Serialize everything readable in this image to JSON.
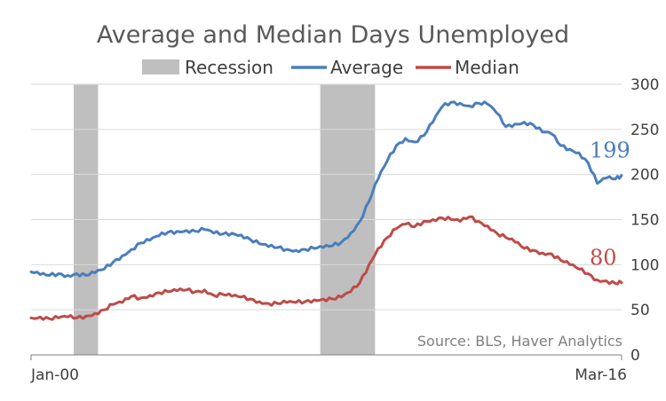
{
  "chart_data": {
    "type": "line",
    "title": "Average and Median Days Unemployed",
    "source": "Source: BLS, Haver Analytics",
    "x_range": [
      "2000-01",
      "2016-03"
    ],
    "x_tick_labels": [
      "Jan-00",
      "Mar-16"
    ],
    "y_axis_side": "right",
    "ylim": [
      0,
      300
    ],
    "y_ticks": [
      "0",
      "50",
      "100",
      "150",
      "200",
      "250",
      "300"
    ],
    "grid": "horizontal",
    "legend_position": "top",
    "legend": [
      "Recession",
      "Average",
      "Median"
    ],
    "recessions": [
      {
        "start": "2001-03",
        "end": "2001-11"
      },
      {
        "start": "2007-12",
        "end": "2009-06"
      }
    ],
    "series": [
      {
        "name": "Average",
        "color": "#4a7ebb",
        "end_label": "199",
        "points": [
          [
            "2000-01",
            92
          ],
          [
            "2000-04",
            89
          ],
          [
            "2000-07",
            88
          ],
          [
            "2000-10",
            90
          ],
          [
            "2001-01",
            88
          ],
          [
            "2001-04",
            90
          ],
          [
            "2001-07",
            88
          ],
          [
            "2001-10",
            91
          ],
          [
            "2002-01",
            95
          ],
          [
            "2002-04",
            103
          ],
          [
            "2002-07",
            110
          ],
          [
            "2002-10",
            117
          ],
          [
            "2003-01",
            124
          ],
          [
            "2003-04",
            127
          ],
          [
            "2003-07",
            132
          ],
          [
            "2003-10",
            136
          ],
          [
            "2004-01",
            137
          ],
          [
            "2004-04",
            138
          ],
          [
            "2004-07",
            137
          ],
          [
            "2004-10",
            139
          ],
          [
            "2005-01",
            135
          ],
          [
            "2005-04",
            134
          ],
          [
            "2005-07",
            135
          ],
          [
            "2005-10",
            133
          ],
          [
            "2006-01",
            128
          ],
          [
            "2006-04",
            123
          ],
          [
            "2006-07",
            120
          ],
          [
            "2006-10",
            119
          ],
          [
            "2007-01",
            117
          ],
          [
            "2007-04",
            116
          ],
          [
            "2007-07",
            117
          ],
          [
            "2007-10",
            118
          ],
          [
            "2008-01",
            119
          ],
          [
            "2008-04",
            121
          ],
          [
            "2008-07",
            125
          ],
          [
            "2008-10",
            135
          ],
          [
            "2009-01",
            148
          ],
          [
            "2009-04",
            170
          ],
          [
            "2009-07",
            195
          ],
          [
            "2009-10",
            215
          ],
          [
            "2010-01",
            232
          ],
          [
            "2010-04",
            240
          ],
          [
            "2010-07",
            236
          ],
          [
            "2010-10",
            243
          ],
          [
            "2011-01",
            258
          ],
          [
            "2011-04",
            275
          ],
          [
            "2011-07",
            280
          ],
          [
            "2011-10",
            279
          ],
          [
            "2012-01",
            276
          ],
          [
            "2012-04",
            279
          ],
          [
            "2012-07",
            278
          ],
          [
            "2012-10",
            268
          ],
          [
            "2013-01",
            253
          ],
          [
            "2013-04",
            256
          ],
          [
            "2013-07",
            258
          ],
          [
            "2013-10",
            255
          ],
          [
            "2014-01",
            247
          ],
          [
            "2014-04",
            245
          ],
          [
            "2014-07",
            232
          ],
          [
            "2014-10",
            228
          ],
          [
            "2015-01",
            224
          ],
          [
            "2015-04",
            213
          ],
          [
            "2015-07",
            190
          ],
          [
            "2015-10",
            196
          ],
          [
            "2016-01",
            195
          ],
          [
            "2016-03",
            199
          ]
        ]
      },
      {
        "name": "Median",
        "color": "#be4b48",
        "end_label": "80",
        "points": [
          [
            "2000-01",
            41
          ],
          [
            "2000-04",
            42
          ],
          [
            "2000-07",
            40
          ],
          [
            "2000-10",
            41
          ],
          [
            "2001-01",
            42
          ],
          [
            "2001-04",
            41
          ],
          [
            "2001-07",
            43
          ],
          [
            "2001-10",
            46
          ],
          [
            "2002-01",
            50
          ],
          [
            "2002-04",
            56
          ],
          [
            "2002-07",
            58
          ],
          [
            "2002-10",
            65
          ],
          [
            "2003-01",
            63
          ],
          [
            "2003-04",
            66
          ],
          [
            "2003-07",
            69
          ],
          [
            "2003-10",
            70
          ],
          [
            "2004-01",
            71
          ],
          [
            "2004-04",
            72
          ],
          [
            "2004-07",
            70
          ],
          [
            "2004-10",
            72
          ],
          [
            "2005-01",
            66
          ],
          [
            "2005-04",
            67
          ],
          [
            "2005-07",
            65
          ],
          [
            "2005-10",
            64
          ],
          [
            "2006-01",
            62
          ],
          [
            "2006-04",
            59
          ],
          [
            "2006-07",
            57
          ],
          [
            "2006-10",
            57
          ],
          [
            "2007-01",
            58
          ],
          [
            "2007-04",
            58
          ],
          [
            "2007-07",
            59
          ],
          [
            "2007-10",
            61
          ],
          [
            "2008-01",
            62
          ],
          [
            "2008-04",
            62
          ],
          [
            "2008-07",
            64
          ],
          [
            "2008-10",
            70
          ],
          [
            "2009-01",
            80
          ],
          [
            "2009-04",
            100
          ],
          [
            "2009-07",
            118
          ],
          [
            "2009-10",
            130
          ],
          [
            "2010-01",
            140
          ],
          [
            "2010-04",
            145
          ],
          [
            "2010-07",
            142
          ],
          [
            "2010-10",
            148
          ],
          [
            "2011-01",
            150
          ],
          [
            "2011-04",
            152
          ],
          [
            "2011-07",
            150
          ],
          [
            "2011-10",
            148
          ],
          [
            "2012-01",
            153
          ],
          [
            "2012-04",
            148
          ],
          [
            "2012-07",
            143
          ],
          [
            "2012-10",
            135
          ],
          [
            "2013-01",
            130
          ],
          [
            "2013-04",
            125
          ],
          [
            "2013-07",
            118
          ],
          [
            "2013-10",
            116
          ],
          [
            "2014-01",
            113
          ],
          [
            "2014-04",
            112
          ],
          [
            "2014-07",
            105
          ],
          [
            "2014-10",
            100
          ],
          [
            "2015-01",
            95
          ],
          [
            "2015-04",
            90
          ],
          [
            "2015-07",
            83
          ],
          [
            "2015-10",
            82
          ],
          [
            "2016-01",
            79
          ],
          [
            "2016-03",
            80
          ]
        ]
      }
    ]
  },
  "colors": {
    "recession": "#bfbfbf",
    "gridline": "#d9d9d9",
    "axis": "#7f7f7f"
  }
}
